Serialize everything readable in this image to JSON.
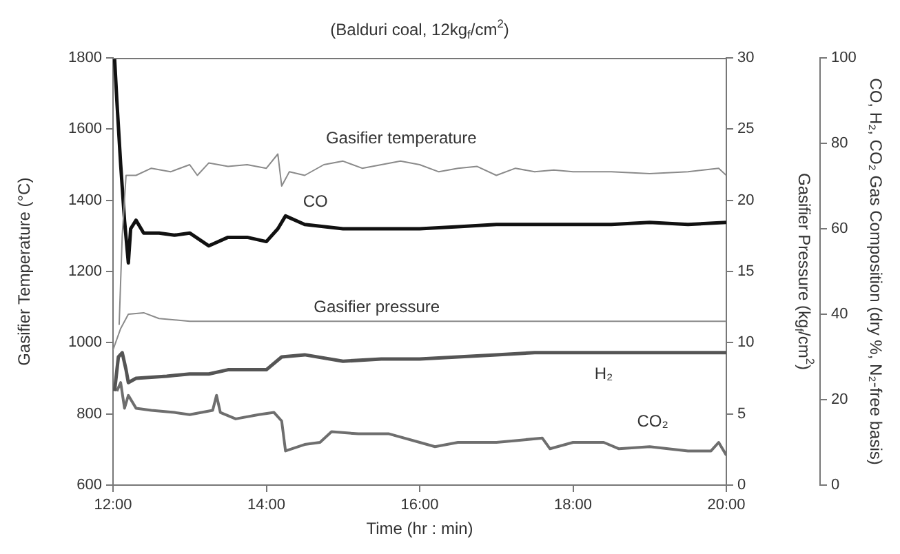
{
  "chart_data": {
    "type": "line",
    "title": "(Balduri coal, 12kg$_{f}$/cm$^{2}$)",
    "xlabel": "Time (hr : min)",
    "ylabel": "Gasifier Temperature (°C)",
    "y2label": "Gasifier Pressure (kg$_{f}$/cm$^{2}$)",
    "y3label": "CO, H₂, CO₂ Gas Composition (dry %, N₂-free basis)",
    "xlim": [
      12,
      20
    ],
    "xticks": [
      {
        "value": 12,
        "label": "12:00"
      },
      {
        "value": 14,
        "label": "14:00"
      },
      {
        "value": 16,
        "label": "16:00"
      },
      {
        "value": 18,
        "label": "18:00"
      },
      {
        "value": 20,
        "label": "20:00"
      }
    ],
    "ylim": [
      600,
      1800
    ],
    "yticks": [
      600,
      800,
      1000,
      1200,
      1400,
      1600,
      1800
    ],
    "y2lim": [
      0,
      30
    ],
    "y2ticks": [
      0,
      5,
      10,
      15,
      20,
      25,
      30
    ],
    "y3lim": [
      0,
      100
    ],
    "y3ticks": [
      0,
      20,
      40,
      60,
      80,
      100
    ],
    "series": [
      {
        "name": "Gasifier temperature",
        "color": "#8a8a8a",
        "axis": "y",
        "x": [
          12.08,
          12.12,
          12.17,
          12.3,
          12.5,
          12.75,
          13.0,
          13.1,
          13.25,
          13.5,
          13.75,
          14.0,
          14.15,
          14.2,
          14.3,
          14.5,
          14.75,
          15.0,
          15.25,
          15.5,
          15.75,
          16.0,
          16.25,
          16.5,
          16.75,
          17.0,
          17.25,
          17.5,
          17.75,
          18.0,
          18.5,
          19.0,
          19.5,
          19.9,
          20.0
        ],
        "values": [
          1050,
          1300,
          1470,
          1470,
          1490,
          1480,
          1500,
          1470,
          1505,
          1495,
          1500,
          1490,
          1530,
          1440,
          1480,
          1470,
          1500,
          1510,
          1490,
          1500,
          1510,
          1500,
          1480,
          1490,
          1495,
          1470,
          1490,
          1480,
          1485,
          1480,
          1480,
          1475,
          1480,
          1490,
          1470
        ]
      },
      {
        "name": "CO",
        "color": "#111111",
        "axis": "y3",
        "x": [
          12.02,
          12.05,
          12.1,
          12.15,
          12.2,
          12.23,
          12.3,
          12.4,
          12.6,
          12.8,
          13.0,
          13.25,
          13.5,
          13.75,
          14.0,
          14.15,
          14.25,
          14.5,
          15.0,
          15.5,
          16.0,
          16.5,
          17.0,
          17.5,
          18.0,
          18.5,
          19.0,
          19.5,
          20.0
        ],
        "values": [
          100,
          90,
          75,
          62,
          52,
          60,
          62,
          59,
          59,
          58.5,
          59,
          56,
          58,
          58,
          57,
          60,
          63,
          61,
          60,
          60,
          60,
          60.5,
          61,
          61,
          61,
          61,
          61.5,
          61,
          61.5
        ]
      },
      {
        "name": "Gasifier pressure",
        "color": "#8a8a8a",
        "axis": "y2",
        "x": [
          12.0,
          12.1,
          12.2,
          12.4,
          12.6,
          13.0,
          14.0,
          15.0,
          16.0,
          17.0,
          18.0,
          19.0,
          20.0
        ],
        "values": [
          9.5,
          11,
          12,
          12.1,
          11.7,
          11.5,
          11.5,
          11.5,
          11.5,
          11.5,
          11.5,
          11.5,
          11.5
        ]
      },
      {
        "name": "H₂",
        "color": "#555555",
        "axis": "y3",
        "x": [
          12.02,
          12.07,
          12.12,
          12.17,
          12.2,
          12.3,
          12.7,
          13.0,
          13.25,
          13.5,
          14.0,
          14.2,
          14.5,
          15.0,
          15.5,
          16.0,
          16.5,
          17.0,
          17.5,
          18.0,
          19.0,
          20.0
        ],
        "values": [
          22,
          30,
          31,
          27,
          24,
          25,
          25.5,
          26,
          26,
          27,
          27,
          30,
          30.5,
          29,
          29.5,
          29.5,
          30,
          30.5,
          31,
          31,
          31,
          31
        ]
      },
      {
        "name": "CO₂",
        "color": "#6e6e6e",
        "axis": "y3",
        "x": [
          12.05,
          12.1,
          12.15,
          12.2,
          12.3,
          12.5,
          12.8,
          13.0,
          13.3,
          13.35,
          13.4,
          13.6,
          13.9,
          14.1,
          14.2,
          14.25,
          14.5,
          14.7,
          14.85,
          15.2,
          15.6,
          16.0,
          16.2,
          16.5,
          17.0,
          17.3,
          17.6,
          17.7,
          18.0,
          18.4,
          18.6,
          19.0,
          19.5,
          19.8,
          19.9,
          20.0
        ],
        "values": [
          22,
          24,
          18,
          21,
          18,
          17.5,
          17,
          16.5,
          17.5,
          21,
          17,
          15.5,
          16.5,
          17,
          15,
          8,
          9.5,
          10,
          12.5,
          12,
          12,
          10,
          9,
          10,
          10,
          10.5,
          11,
          8.5,
          10,
          10,
          8.5,
          9,
          8,
          8,
          10,
          7
        ]
      }
    ]
  }
}
